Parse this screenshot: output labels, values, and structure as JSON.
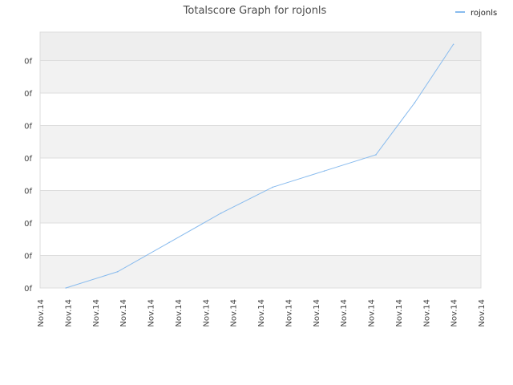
{
  "chart_data": {
    "type": "line",
    "title": "Totalscore Graph for rojonls",
    "xlabel": "",
    "ylabel": "",
    "x_tick_labels": [
      "Nov.14",
      "Nov.14",
      "Nov.14",
      "Nov.14",
      "Nov.14",
      "Nov.14",
      "Nov.14",
      "Nov.14",
      "Nov.14",
      "Nov.14",
      "Nov.14",
      "Nov.14",
      "Nov.14",
      "Nov.14",
      "Nov.14",
      "Nov.14",
      "Nov.14"
    ],
    "y_tick_labels": [
      "0f",
      "0f",
      "0f",
      "0f",
      "0f",
      "0f",
      "0f",
      "0f"
    ],
    "ylim": [
      0,
      7.9
    ],
    "xlim": [
      0,
      16
    ],
    "grid": true,
    "legend_position": "top-right",
    "series": [
      {
        "name": "rojonls",
        "color": "#88bbee",
        "x": [
          1,
          3,
          5,
          7,
          9,
          11,
          13,
          14.5,
          16
        ],
        "y": [
          0,
          0.5,
          1.4,
          2.3,
          3.1,
          3.6,
          4.1,
          5.7,
          7.5
        ]
      }
    ]
  },
  "colors": {
    "band_light": "#f2f2f2",
    "band_white": "#ffffff",
    "grid_line": "#dddddd",
    "line": "#88bbee"
  }
}
